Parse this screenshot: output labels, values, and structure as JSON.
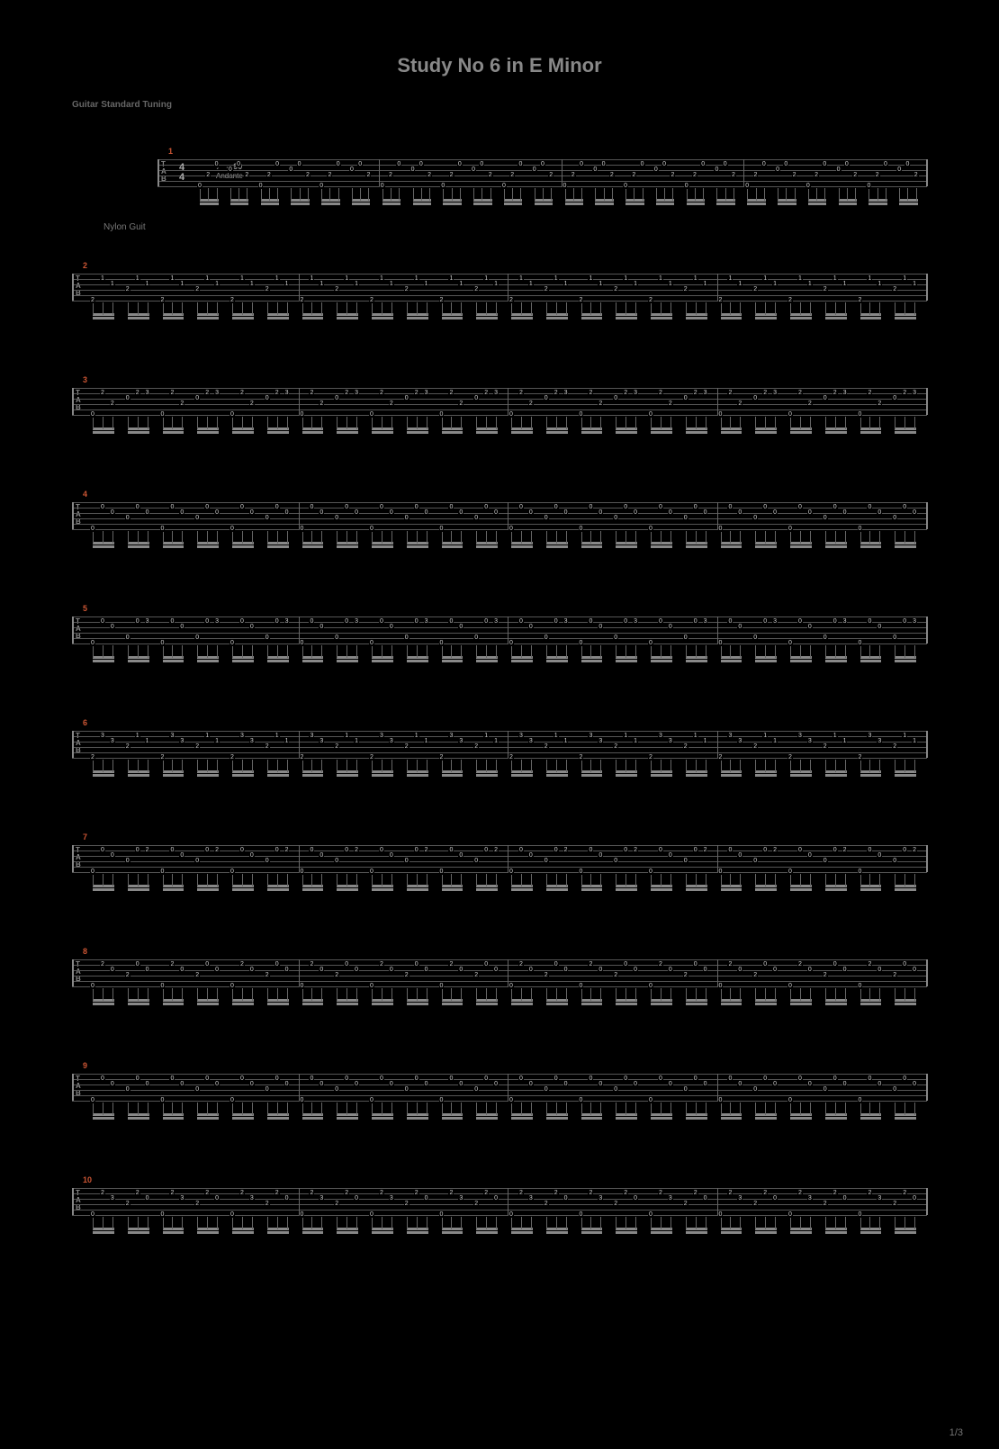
{
  "title": "Study No 6 in E Minor",
  "subtitle": "Guitar Standard Tuning",
  "tempo_value": "= 90",
  "tempo_text": "Andante",
  "instrument": "Nylon Guit",
  "time_sig_top": "4",
  "time_sig_bot": "4",
  "tab_letters": [
    "T",
    "A",
    "B"
  ],
  "page_number": "1/3",
  "background_color": "#000000",
  "line_color": "#555555",
  "text_color": "#888888",
  "accent_color": "#cc5533",
  "fret_color": "#cccccc",
  "staff_line_spacing": 6,
  "num_strings": 6,
  "systems": [
    {
      "measure": "1",
      "first": true,
      "groups_per_bar": 6,
      "bars": 4,
      "notes_pattern": [
        [
          {
            "s": 5,
            "f": "0"
          },
          {
            "s": 3,
            "f": "2"
          },
          {
            "s": 1,
            "f": "0"
          }
        ],
        [
          {
            "s": 2,
            "f": "0"
          },
          {
            "s": 1,
            "f": "0"
          },
          {
            "s": 3,
            "f": "2"
          }
        ]
      ]
    },
    {
      "measure": "2",
      "groups_per_bar": 6,
      "bars": 4,
      "notes_pattern": [
        [
          {
            "s": 5,
            "f": "2"
          },
          {
            "s": 1,
            "f": "1"
          },
          {
            "s": 2,
            "f": "1"
          }
        ],
        [
          {
            "s": 3,
            "f": "2"
          },
          {
            "s": 1,
            "f": "1"
          },
          {
            "s": 2,
            "f": "1"
          }
        ]
      ]
    },
    {
      "measure": "3",
      "groups_per_bar": 6,
      "bars": 4,
      "notes_pattern": [
        [
          {
            "s": 5,
            "f": "0"
          },
          {
            "s": 1,
            "f": "2"
          },
          {
            "s": 3,
            "f": "2"
          }
        ],
        [
          {
            "s": 2,
            "f": "0"
          },
          {
            "s": 1,
            "f": "2"
          },
          {
            "s": 1,
            "f": "3"
          }
        ]
      ]
    },
    {
      "measure": "4",
      "groups_per_bar": 6,
      "bars": 4,
      "notes_pattern": [
        [
          {
            "s": 5,
            "f": "0"
          },
          {
            "s": 1,
            "f": "0"
          },
          {
            "s": 2,
            "f": "0"
          }
        ],
        [
          {
            "s": 3,
            "f": "0"
          },
          {
            "s": 1,
            "f": "0"
          },
          {
            "s": 2,
            "f": "0"
          }
        ]
      ]
    },
    {
      "measure": "5",
      "groups_per_bar": 6,
      "bars": 4,
      "notes_pattern": [
        [
          {
            "s": 5,
            "f": "0"
          },
          {
            "s": 1,
            "f": "0"
          },
          {
            "s": 2,
            "f": "0"
          }
        ],
        [
          {
            "s": 4,
            "f": "0"
          },
          {
            "s": 1,
            "f": "0"
          },
          {
            "s": 1,
            "f": "3"
          }
        ]
      ]
    },
    {
      "measure": "6",
      "groups_per_bar": 6,
      "bars": 4,
      "notes_pattern": [
        [
          {
            "s": 5,
            "f": "2"
          },
          {
            "s": 1,
            "f": "3"
          },
          {
            "s": 2,
            "f": "3"
          }
        ],
        [
          {
            "s": 3,
            "f": "2"
          },
          {
            "s": 1,
            "f": "1"
          },
          {
            "s": 2,
            "f": "1"
          }
        ]
      ]
    },
    {
      "measure": "7",
      "groups_per_bar": 6,
      "bars": 4,
      "notes_pattern": [
        [
          {
            "s": 5,
            "f": "0"
          },
          {
            "s": 1,
            "f": "0"
          },
          {
            "s": 2,
            "f": "0"
          }
        ],
        [
          {
            "s": 3,
            "f": "0"
          },
          {
            "s": 1,
            "f": "0"
          },
          {
            "s": 1,
            "f": "2"
          }
        ]
      ]
    },
    {
      "measure": "8",
      "groups_per_bar": 6,
      "bars": 4,
      "notes_pattern": [
        [
          {
            "s": 5,
            "f": "0"
          },
          {
            "s": 1,
            "f": "2"
          },
          {
            "s": 2,
            "f": "0"
          }
        ],
        [
          {
            "s": 3,
            "f": "2"
          },
          {
            "s": 1,
            "f": "0"
          },
          {
            "s": 2,
            "f": "0"
          }
        ]
      ]
    },
    {
      "measure": "9",
      "groups_per_bar": 6,
      "bars": 4,
      "notes_pattern": [
        [
          {
            "s": 5,
            "f": "0"
          },
          {
            "s": 1,
            "f": "0"
          },
          {
            "s": 2,
            "f": "0"
          }
        ],
        [
          {
            "s": 3,
            "f": "0"
          },
          {
            "s": 1,
            "f": "0"
          },
          {
            "s": 2,
            "f": "0"
          }
        ]
      ]
    },
    {
      "measure": "10",
      "groups_per_bar": 6,
      "bars": 4,
      "notes_pattern": [
        [
          {
            "s": 5,
            "f": "0"
          },
          {
            "s": 1,
            "f": "2"
          },
          {
            "s": 2,
            "f": "3"
          }
        ],
        [
          {
            "s": 3,
            "f": "2"
          },
          {
            "s": 1,
            "f": "2"
          },
          {
            "s": 2,
            "f": "0"
          }
        ]
      ]
    }
  ]
}
